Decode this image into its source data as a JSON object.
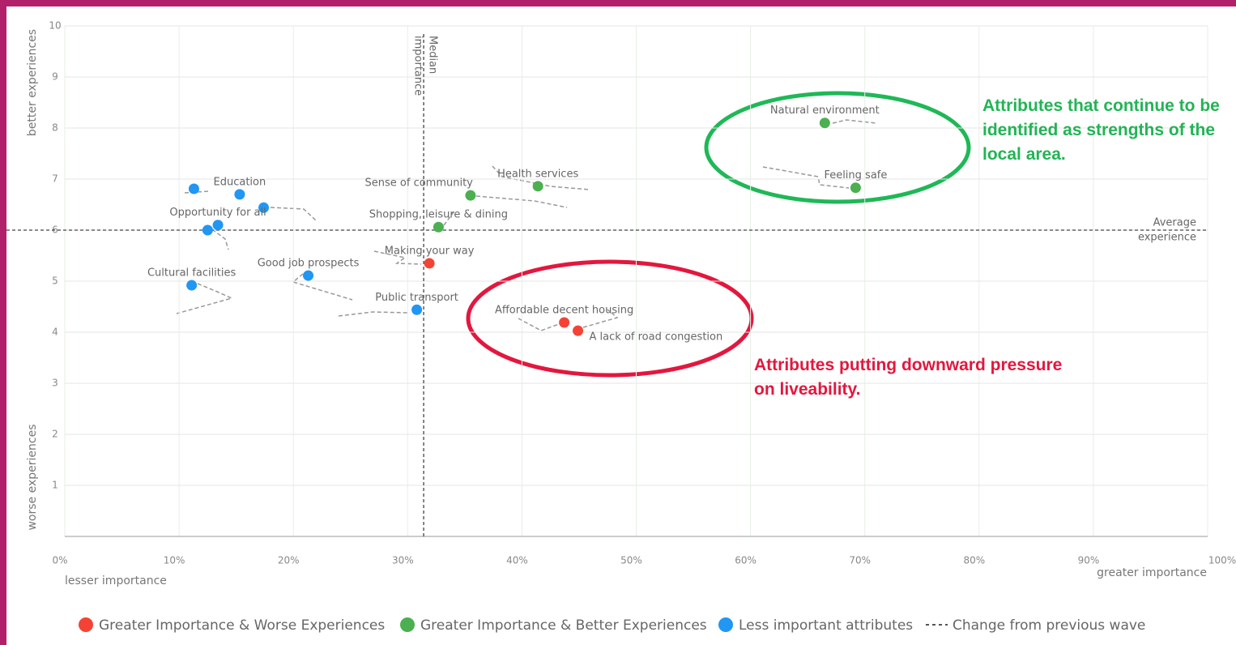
{
  "chart_data": {
    "type": "scatter",
    "xlim": [
      0,
      100
    ],
    "ylim": [
      0,
      10
    ],
    "xticks": [
      {
        "value": 0,
        "label": "0%"
      },
      {
        "value": 10,
        "label": "10%"
      },
      {
        "value": 20,
        "label": "20%"
      },
      {
        "value": 30,
        "label": "30%"
      },
      {
        "value": 40,
        "label": "40%"
      },
      {
        "value": 50,
        "label": "50%"
      },
      {
        "value": 60,
        "label": "60%"
      },
      {
        "value": 70,
        "label": "70%"
      },
      {
        "value": 80,
        "label": "80%"
      },
      {
        "value": 90,
        "label": "90%"
      },
      {
        "value": 100,
        "label": "100%"
      }
    ],
    "yticks": [
      1,
      2,
      3,
      4,
      5,
      6,
      7,
      8,
      9,
      10
    ],
    "grid": true,
    "x_axis_labels": [
      "lesser importance",
      "greater importance"
    ],
    "y_axis_labels": [
      "better experiences",
      "worse experiences"
    ],
    "reference_lines": {
      "median_importance": {
        "value": 31.4,
        "label_lines": [
          "Median",
          "importance"
        ]
      },
      "average_experience": {
        "value": 6,
        "label_lines": [
          "Average",
          "experience"
        ]
      }
    },
    "series": [
      {
        "name": "Greater Importance & Worse Experiences",
        "color": "#f44336",
        "x": [
          31.9,
          43.7,
          44.9
        ],
        "values": [
          5.35,
          4.19,
          4.03
        ],
        "labels": [
          "Making your way",
          "Affordable decent housing",
          "A lack of road congestion"
        ]
      },
      {
        "name": "Greater Importance & Better Experiences",
        "color": "#4caf50",
        "x": [
          66.5,
          69.2,
          41.4,
          35.5,
          32.7
        ],
        "values": [
          8.1,
          6.83,
          6.86,
          6.68,
          6.06
        ],
        "labels": [
          "Natural environment",
          "Feeling safe",
          "Health services",
          "Sense of community",
          "Shopping, leisure & dining"
        ]
      },
      {
        "name": "Less important attributes",
        "color": "#2196f3",
        "x": [
          15.3,
          11.3,
          17.4,
          13.4,
          12.5,
          11.1,
          21.3,
          30.8
        ],
        "values": [
          6.7,
          6.81,
          6.44,
          6.1,
          6.0,
          4.92,
          5.11,
          4.44
        ],
        "labels": [
          "Education",
          null,
          null,
          "Opportunity for all",
          null,
          "Cultural facilities",
          "Good job prospects",
          "Public transport"
        ]
      }
    ],
    "legend_extra": "Change from previous wave",
    "annotations": [
      "Attributes that continue to be identified as strengths of the local area.",
      "Attributes putting downward pressure on liveability."
    ]
  }
}
